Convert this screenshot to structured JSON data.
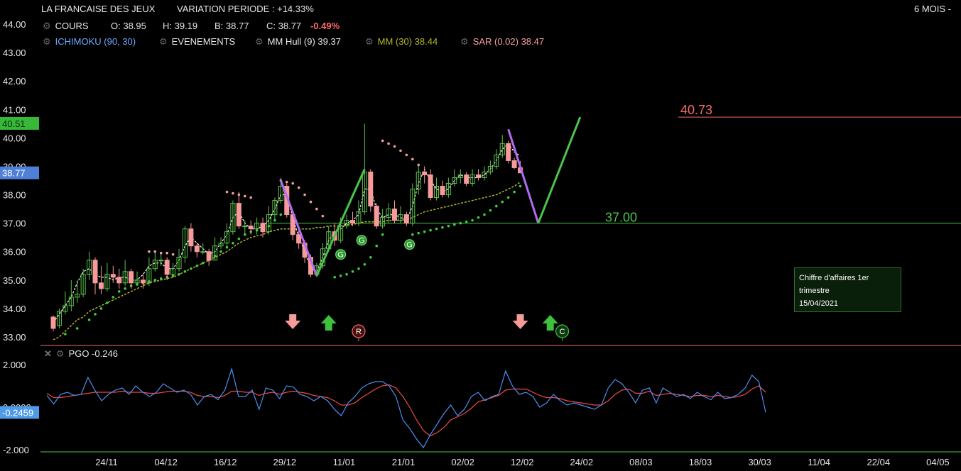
{
  "header": {
    "title": "LA FRANCAISE DES JEUX",
    "variation_label": "VARIATION PERIODE : +14.33%",
    "period": "6 MOIS -",
    "cours_label": "COURS",
    "ohlc": {
      "o": "O: 38.95",
      "h": "H: 39.19",
      "b": "B: 38.77",
      "c": "C: 38.77",
      "change": "-0.49%"
    },
    "ind_ichimoku": "ICHIMOKU (90, 30)",
    "ind_events": "EVENEMENTS",
    "ind_hull": "MM Hull (9) 39.37",
    "ind_mm": "MM (30) 38.44",
    "ind_sar": "SAR (0.02) 38.47",
    "pgo_label": "PGO -0.246"
  },
  "colors": {
    "up": "#5ec24a",
    "down": "#f79a9a",
    "hull": "#ffffff",
    "mm": "#b5b52a",
    "sar_up": "#3ecf3e",
    "sar_down": "#f7a0a0",
    "purple": "#b06cf0",
    "green_trend": "#4cc34c",
    "red_level": "#f06a6a",
    "pgo": "#4a8ef0",
    "pgo_signal": "#f04848"
  },
  "tooltip": {
    "line1": "Chiffre d'affaires 1er",
    "line2": "trimestre",
    "date": "15/04/2021"
  },
  "chart_data": [
    {
      "type": "candlestick",
      "ylim": [
        33.0,
        44.0
      ],
      "y_ticks": [
        "44.00",
        "43.00",
        "42.00",
        "41.00",
        "40.00",
        "39.00",
        "38.00",
        "37.00",
        "36.00",
        "35.00",
        "34.00",
        "33.00"
      ],
      "x_ticks": [
        "24/11",
        "04/12",
        "16/12",
        "29/12",
        "11/01",
        "21/01",
        "02/02",
        "12/02",
        "24/02",
        "08/03",
        "18/03",
        "30/03",
        "11/04",
        "22/04",
        "04/05"
      ],
      "last_price_label": "38.77",
      "hull_label": "40.51",
      "levels": {
        "high": 40.73,
        "high_label": "40.73",
        "low": 37.0,
        "low_label": "37.00"
      },
      "candles": [
        [
          33.7,
          33.3,
          33.75,
          33.2
        ],
        [
          33.4,
          33.9,
          34.0,
          33.3
        ],
        [
          33.9,
          34.1,
          34.6,
          33.8
        ],
        [
          34.1,
          34.4,
          35.0,
          33.9
        ],
        [
          34.4,
          34.5,
          35.0,
          34.2
        ],
        [
          34.5,
          35.2,
          35.4,
          34.4
        ],
        [
          35.2,
          35.7,
          36.0,
          35.0
        ],
        [
          35.7,
          34.9,
          35.8,
          34.5
        ],
        [
          34.9,
          34.7,
          35.5,
          34.5
        ],
        [
          34.7,
          35.2,
          35.6,
          34.6
        ],
        [
          35.2,
          35.1,
          35.5,
          34.9
        ],
        [
          35.1,
          34.9,
          35.4,
          34.7
        ],
        [
          34.9,
          35.3,
          35.7,
          34.8
        ],
        [
          35.3,
          34.9,
          35.4,
          34.7
        ],
        [
          34.9,
          35.0,
          35.3,
          34.8
        ],
        [
          35.0,
          34.9,
          35.2,
          34.7
        ],
        [
          34.9,
          35.4,
          35.8,
          34.8
        ],
        [
          35.4,
          35.7,
          36.0,
          35.3
        ],
        [
          35.7,
          35.7,
          35.9,
          35.5
        ],
        [
          35.7,
          35.2,
          35.8,
          35.0
        ],
        [
          35.2,
          35.4,
          35.6,
          35.2
        ],
        [
          35.4,
          35.8,
          36.1,
          35.3
        ],
        [
          35.8,
          36.8,
          36.9,
          35.6
        ],
        [
          36.8,
          36.2,
          37.0,
          36.0
        ],
        [
          36.2,
          36.0,
          36.3,
          35.8
        ],
        [
          36.0,
          36.0,
          36.3,
          35.9
        ],
        [
          36.0,
          35.7,
          36.1,
          35.5
        ],
        [
          35.7,
          36.2,
          36.5,
          35.7
        ],
        [
          36.2,
          36.3,
          36.5,
          36.1
        ],
        [
          36.3,
          36.7,
          37.0,
          36.2
        ],
        [
          36.7,
          37.7,
          37.8,
          36.6
        ],
        [
          37.7,
          36.9,
          38.1,
          36.8
        ],
        [
          36.9,
          36.9,
          37.1,
          36.6
        ],
        [
          36.9,
          36.8,
          37.1,
          36.6
        ],
        [
          36.8,
          37.0,
          37.2,
          36.6
        ],
        [
          37.0,
          36.7,
          37.2,
          36.5
        ],
        [
          36.7,
          37.3,
          37.6,
          36.6
        ],
        [
          37.3,
          37.8,
          37.9,
          37.1
        ],
        [
          37.8,
          38.3,
          38.6,
          37.7
        ],
        [
          38.3,
          37.3,
          38.4,
          37.2
        ],
        [
          37.3,
          36.6,
          37.4,
          36.4
        ],
        [
          36.6,
          36.3,
          36.9,
          36.1
        ],
        [
          36.3,
          35.8,
          36.4,
          35.6
        ],
        [
          35.8,
          35.2,
          35.9,
          35.1
        ],
        [
          35.2,
          35.5,
          35.6,
          35.1
        ],
        [
          35.5,
          36.1,
          36.3,
          35.4
        ],
        [
          36.1,
          36.7,
          36.9,
          36.0
        ],
        [
          36.7,
          36.4,
          37.0,
          36.2
        ],
        [
          36.4,
          36.9,
          37.2,
          36.3
        ],
        [
          36.9,
          37.1,
          37.3,
          36.8
        ],
        [
          37.1,
          37.0,
          37.4,
          36.9
        ],
        [
          37.0,
          37.4,
          37.8,
          36.9
        ],
        [
          37.4,
          38.8,
          40.5,
          37.3
        ],
        [
          38.8,
          37.6,
          38.9,
          37.4
        ],
        [
          37.6,
          36.9,
          37.7,
          36.8
        ],
        [
          36.9,
          37.2,
          37.5,
          36.8
        ],
        [
          37.2,
          37.5,
          37.7,
          37.0
        ],
        [
          37.5,
          37.1,
          37.8,
          37.0
        ],
        [
          37.1,
          37.3,
          37.6,
          37.0
        ],
        [
          37.3,
          37.0,
          37.4,
          36.9
        ],
        [
          37.0,
          38.2,
          38.4,
          36.9
        ],
        [
          38.2,
          38.8,
          39.1,
          38.0
        ],
        [
          38.8,
          38.7,
          39.0,
          38.4
        ],
        [
          38.7,
          37.9,
          38.9,
          37.8
        ],
        [
          37.9,
          38.3,
          38.6,
          37.8
        ],
        [
          38.3,
          38.0,
          38.5,
          37.9
        ],
        [
          38.0,
          38.4,
          38.6,
          37.9
        ],
        [
          38.4,
          38.6,
          38.9,
          38.3
        ],
        [
          38.6,
          38.7,
          38.9,
          38.4
        ],
        [
          38.7,
          38.4,
          38.8,
          38.3
        ],
        [
          38.4,
          38.7,
          38.9,
          38.3
        ],
        [
          38.7,
          38.6,
          38.9,
          38.5
        ],
        [
          38.6,
          38.8,
          39.0,
          38.5
        ],
        [
          38.8,
          39.0,
          39.2,
          38.7
        ],
        [
          39.0,
          39.4,
          39.6,
          38.9
        ],
        [
          39.4,
          39.8,
          40.1,
          39.3
        ],
        [
          39.8,
          39.2,
          39.9,
          39.1
        ],
        [
          39.2,
          38.95,
          39.3,
          38.9
        ],
        [
          38.95,
          38.77,
          39.19,
          38.77
        ]
      ],
      "hull_ma": [
        33.5,
        33.8,
        34.1,
        34.4,
        34.9,
        35.3,
        35.4,
        35.2,
        35.1,
        35.1,
        35.0,
        35.1,
        35.1,
        35.0,
        35.0,
        35.2,
        35.5,
        35.6,
        35.6,
        35.4,
        35.4,
        35.7,
        36.2,
        36.5,
        36.3,
        36.1,
        35.9,
        36.0,
        36.3,
        36.6,
        37.2,
        37.4,
        37.0,
        36.8,
        36.8,
        36.9,
        37.1,
        37.5,
        38.0,
        38.0,
        37.2,
        36.5,
        36.0,
        35.4,
        35.3,
        35.8,
        36.4,
        36.7,
        36.8,
        37.0,
        37.1,
        37.3,
        38.2,
        38.2,
        37.5,
        37.2,
        37.3,
        37.3,
        37.2,
        37.1,
        37.6,
        38.4,
        38.9,
        38.5,
        38.2,
        38.1,
        38.2,
        38.5,
        38.7,
        38.6,
        38.6,
        38.6,
        38.7,
        38.9,
        39.2,
        39.6,
        39.8,
        39.5,
        39.37
      ],
      "mm30": [
        32.9,
        33.0,
        33.2,
        33.4,
        33.6,
        33.7,
        33.9,
        34.0,
        34.1,
        34.2,
        34.3,
        34.4,
        34.5,
        34.6,
        34.7,
        34.8,
        34.9,
        34.95,
        35.0,
        35.05,
        35.1,
        35.2,
        35.3,
        35.4,
        35.5,
        35.6,
        35.7,
        35.8,
        35.9,
        36.0,
        36.15,
        36.3,
        36.4,
        36.5,
        36.55,
        36.6,
        36.7,
        36.75,
        36.8,
        36.8,
        36.8,
        36.8,
        36.8,
        36.8,
        36.85,
        36.85,
        36.9,
        36.9,
        36.9,
        36.95,
        36.95,
        37.0,
        37.05,
        37.05,
        37.05,
        37.05,
        37.1,
        37.1,
        37.1,
        37.1,
        37.2,
        37.3,
        37.4,
        37.45,
        37.5,
        37.55,
        37.6,
        37.65,
        37.7,
        37.75,
        37.8,
        37.85,
        37.9,
        37.95,
        38.0,
        38.1,
        38.2,
        38.3,
        38.44
      ],
      "sar_up": [
        [
          2,
          33.1
        ],
        [
          4,
          33.3
        ],
        [
          6,
          33.6
        ],
        [
          7,
          33.8
        ],
        [
          8,
          34.0
        ],
        [
          9,
          34.2
        ],
        [
          10,
          34.4
        ],
        [
          11,
          34.6
        ],
        [
          12,
          34.7
        ],
        [
          13,
          34.8
        ],
        [
          14,
          34.85
        ],
        [
          15,
          34.9
        ],
        [
          16,
          34.95
        ],
        [
          17,
          35.0
        ],
        [
          18,
          35.05
        ],
        [
          19,
          35.1
        ],
        [
          20,
          35.15
        ],
        [
          21,
          35.2
        ],
        [
          22,
          35.3
        ],
        [
          23,
          35.4
        ],
        [
          24,
          35.5
        ],
        [
          25,
          35.6
        ],
        [
          26,
          35.7
        ],
        [
          27,
          35.85
        ],
        [
          28,
          36.0
        ],
        [
          29,
          36.15
        ],
        [
          30,
          36.3
        ],
        [
          31,
          36.45
        ],
        [
          32,
          36.6
        ],
        [
          33,
          36.7
        ],
        [
          34,
          36.75
        ],
        [
          35,
          36.8
        ],
        [
          36,
          36.9
        ],
        [
          37,
          37.1
        ],
        [
          38,
          37.3
        ],
        [
          47,
          35.1
        ],
        [
          48,
          35.15
        ],
        [
          49,
          35.2
        ],
        [
          50,
          35.3
        ],
        [
          51,
          35.4
        ],
        [
          52,
          35.55
        ],
        [
          53,
          35.8
        ],
        [
          54,
          36.2
        ],
        [
          55,
          36.6
        ],
        [
          60,
          36.6
        ],
        [
          61,
          36.65
        ],
        [
          62,
          36.7
        ],
        [
          63,
          36.75
        ],
        [
          64,
          36.8
        ],
        [
          65,
          36.85
        ],
        [
          66,
          36.9
        ],
        [
          67,
          36.95
        ],
        [
          68,
          37.0
        ],
        [
          69,
          37.05
        ],
        [
          70,
          37.1
        ],
        [
          71,
          37.2
        ],
        [
          72,
          37.3
        ],
        [
          73,
          37.45
        ],
        [
          74,
          37.6
        ],
        [
          75,
          37.75
        ],
        [
          76,
          37.9
        ],
        [
          77,
          38.1
        ],
        [
          78,
          38.3
        ]
      ],
      "sar_down": [
        [
          16,
          36.0
        ],
        [
          17,
          36.0
        ],
        [
          18,
          35.95
        ],
        [
          19,
          35.95
        ],
        [
          20,
          35.9
        ],
        [
          29,
          38.1
        ],
        [
          30,
          38.05
        ],
        [
          31,
          38.0
        ],
        [
          32,
          37.95
        ],
        [
          33,
          37.9
        ],
        [
          38,
          38.5
        ],
        [
          39,
          38.45
        ],
        [
          40,
          38.4
        ],
        [
          41,
          38.25
        ],
        [
          42,
          38.0
        ],
        [
          43,
          37.75
        ],
        [
          44,
          37.5
        ],
        [
          45,
          37.25
        ],
        [
          55,
          39.9
        ],
        [
          56,
          39.8
        ],
        [
          57,
          39.7
        ],
        [
          58,
          39.55
        ],
        [
          59,
          39.4
        ],
        [
          60,
          39.25
        ],
        [
          61,
          39.05
        ]
      ],
      "patterns": [
        {
          "color": "purple",
          "from": [
            38,
            38.5
          ],
          "to": [
            44,
            35.15
          ]
        },
        {
          "color": "green",
          "from": [
            44,
            35.15
          ],
          "to": [
            52,
            38.9
          ]
        },
        {
          "color": "purple",
          "from": [
            76,
            40.3
          ],
          "to": [
            81,
            37.0
          ]
        },
        {
          "color": "green",
          "from": [
            81,
            37.0
          ],
          "to": [
            88,
            40.73
          ]
        }
      ],
      "event_arrows": [
        {
          "i": 40,
          "dir": "down"
        },
        {
          "i": 46,
          "dir": "up"
        },
        {
          "i": 78,
          "dir": "down"
        },
        {
          "i": 83,
          "dir": "up"
        }
      ],
      "event_markers": [
        {
          "i": 51,
          "label": "R",
          "kind": "red"
        },
        {
          "i": 85,
          "label": "C",
          "kind": "green"
        }
      ],
      "g_markers": [
        {
          "i": 48,
          "price": 35.9,
          "label": "G"
        },
        {
          "i": 51.5,
          "price": 36.4,
          "label": "G"
        },
        {
          "i": 59.5,
          "price": 36.25,
          "label": "G"
        }
      ]
    },
    {
      "type": "line",
      "name": "PGO",
      "ylim": [
        -2.2,
        2.4
      ],
      "y_ticks": [
        "2.000",
        "0.0000",
        "-2.000"
      ],
      "last_value_label": "-0.2459",
      "pgo": [
        0.55,
        0.15,
        0.6,
        0.7,
        0.55,
        0.6,
        1.4,
        0.8,
        0.3,
        0.6,
        0.8,
        0.9,
        0.6,
        1.0,
        0.7,
        0.5,
        0.7,
        1.1,
        0.9,
        0.7,
        0.8,
        0.6,
        0.1,
        0.5,
        0.6,
        0.35,
        0.8,
        1.8,
        0.5,
        0.5,
        0.8,
        -0.1,
        0.9,
        0.8,
        0.4,
        1.0,
        0.95,
        0.6,
        0.5,
        0.3,
        0.5,
        0.3,
        -0.1,
        -0.4,
        0.2,
        0.5,
        0.9,
        1.1,
        1.2,
        1.2,
        1.0,
        0.5,
        -0.6,
        -1.0,
        -1.5,
        -1.9,
        -1.3,
        -0.8,
        -0.3,
        0.1,
        -0.4,
        -0.1,
        0.5,
        0.7,
        0.3,
        0.5,
        0.6,
        1.7,
        1.0,
        0.6,
        0.7,
        0.5,
        0.0,
        0.2,
        0.6,
        0.3,
        0.1,
        0.2,
        0.1,
        0.0,
        -0.1,
        0.1,
        0.9,
        1.3,
        1.1,
        0.7,
        0.2,
        0.8,
        0.9,
        0.2,
        0.9,
        0.7,
        0.5,
        0.6,
        0.4,
        0.7,
        0.5,
        0.35,
        0.7,
        0.4,
        0.45,
        0.6,
        0.9,
        1.5,
        1.2,
        -0.246
      ],
      "signal": [
        0.65,
        0.45,
        0.45,
        0.5,
        0.55,
        0.6,
        0.65,
        0.7,
        0.7,
        0.7,
        0.7,
        0.75,
        0.7,
        0.7,
        0.7,
        0.65,
        0.65,
        0.7,
        0.75,
        0.75,
        0.75,
        0.7,
        0.55,
        0.5,
        0.5,
        0.45,
        0.55,
        0.75,
        0.75,
        0.7,
        0.7,
        0.55,
        0.65,
        0.7,
        0.6,
        0.7,
        0.75,
        0.7,
        0.65,
        0.55,
        0.5,
        0.45,
        0.3,
        0.1,
        0.1,
        0.2,
        0.45,
        0.65,
        0.85,
        1.0,
        1.05,
        0.9,
        0.5,
        0.0,
        -0.6,
        -1.1,
        -1.35,
        -1.2,
        -0.95,
        -0.6,
        -0.45,
        -0.3,
        -0.05,
        0.25,
        0.35,
        0.45,
        0.55,
        0.8,
        0.85,
        0.85,
        0.85,
        0.7,
        0.55,
        0.45,
        0.45,
        0.4,
        0.3,
        0.25,
        0.2,
        0.15,
        0.1,
        0.1,
        0.3,
        0.6,
        0.8,
        0.85,
        0.65,
        0.65,
        0.75,
        0.55,
        0.6,
        0.65,
        0.6,
        0.55,
        0.5,
        0.55,
        0.55,
        0.5,
        0.55,
        0.5,
        0.45,
        0.5,
        0.6,
        0.85,
        1.0,
        0.7
      ]
    }
  ]
}
